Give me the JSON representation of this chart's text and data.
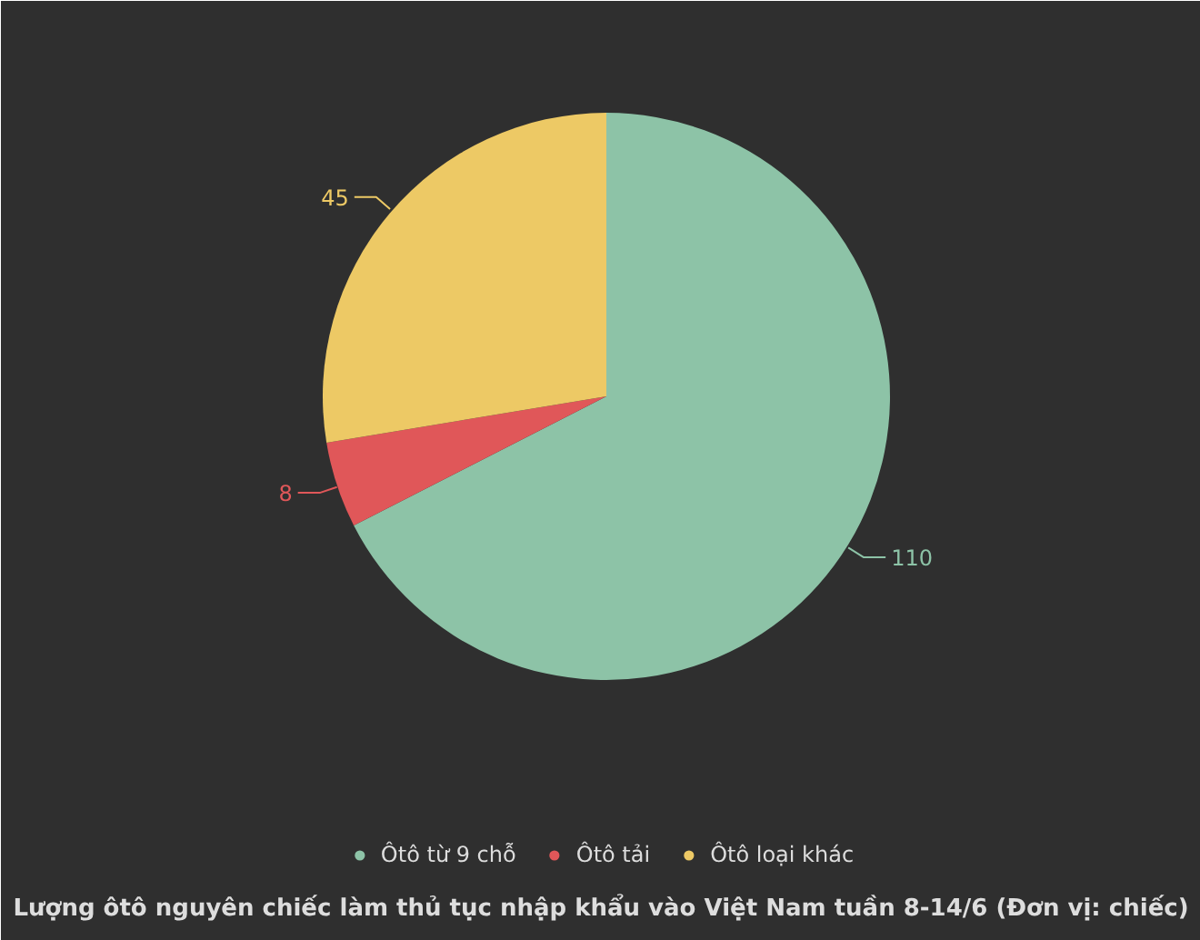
{
  "chart_data": {
    "type": "pie",
    "title": "Lượng ôtô nguyên chiếc làm thủ tục nhập khẩu vào Việt Nam tuần 8-14/6 (Đơn vị: chiếc)",
    "categories": [
      "Ôtô từ 9 chỗ",
      "Ôtô tải",
      "Ôtô loại khác"
    ],
    "values": [
      110,
      8,
      45
    ],
    "colors": [
      "#8dc3a7",
      "#e05759",
      "#edc965"
    ],
    "data_labels": true,
    "legend": "bottom"
  }
}
